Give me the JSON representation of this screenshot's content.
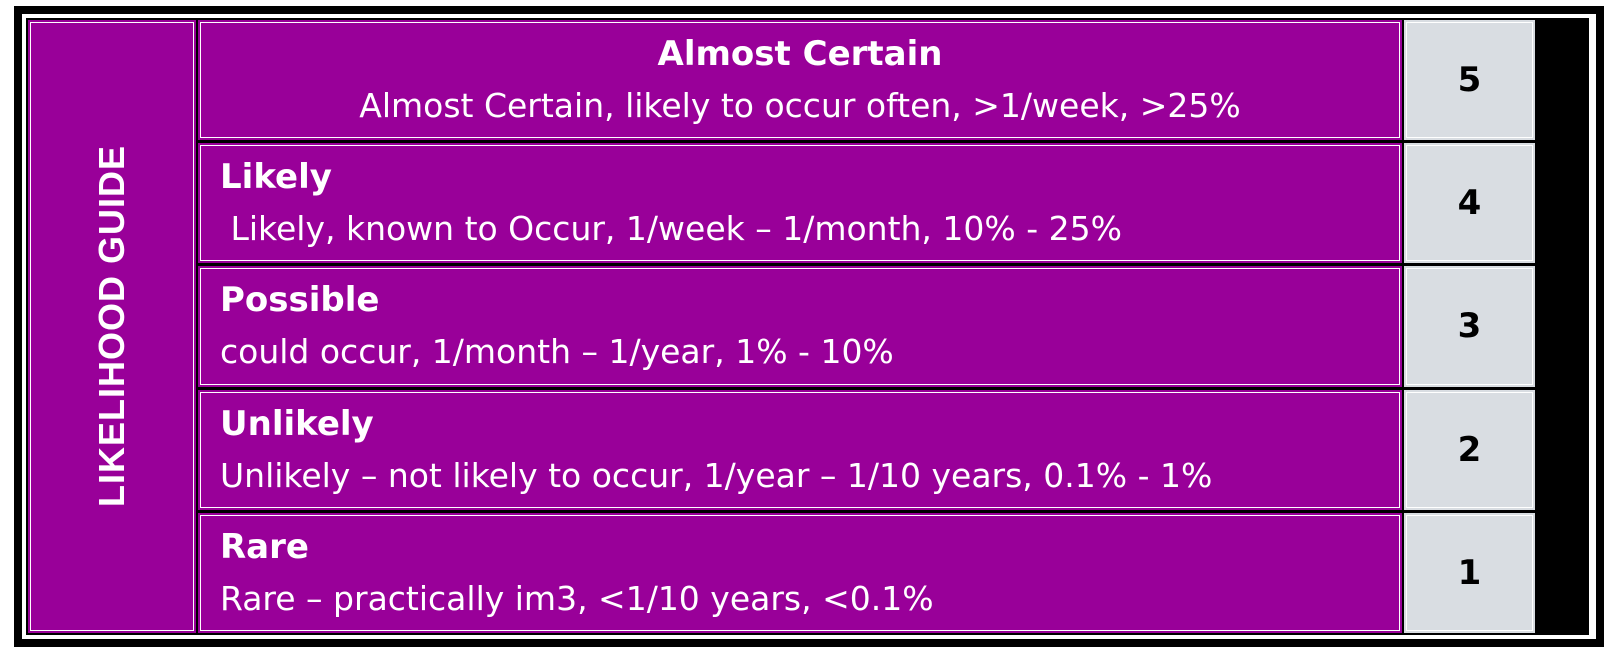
{
  "side_label": "LIKELIHOOD GUIDE",
  "rows": [
    {
      "title": "Almost Certain",
      "description": "Almost Certain, likely to occur often, >1/week, >25%",
      "score": "5"
    },
    {
      "title": "Likely",
      "description": " Likely, known to Occur, 1/week – 1/month, 10% - 25%",
      "score": "4"
    },
    {
      "title": "Possible",
      "description": "could occur, 1/month – 1/year, 1% - 10%",
      "score": "3"
    },
    {
      "title": "Unlikely",
      "description": "Unlikely – not likely to occur, 1/year – 1/10 years, 0.1% - 1%",
      "score": "2"
    },
    {
      "title": "Rare",
      "description": "Rare – practically im3, <1/10 years, <0.1%",
      "score": "1"
    }
  ],
  "colors": {
    "purple": "#990099",
    "score_bg": "#d9dde2",
    "border": "#000000"
  }
}
